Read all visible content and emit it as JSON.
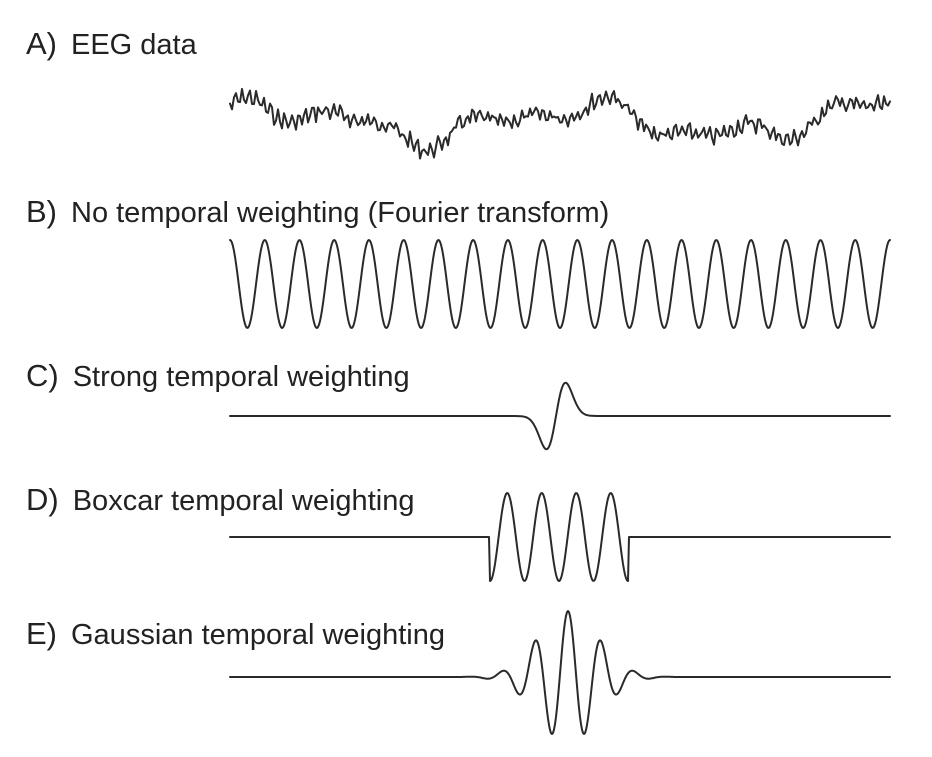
{
  "panels": [
    {
      "id": "A",
      "letter": "A)",
      "title": "EEG data",
      "kind": "noise"
    },
    {
      "id": "B",
      "letter": "B)",
      "title": "No temporal weighting (Fourier transform)",
      "kind": "sine",
      "cycles": 19
    },
    {
      "id": "C",
      "letter": "C)",
      "title": "Strong temporal weighting",
      "kind": "single-cycle"
    },
    {
      "id": "D",
      "letter": "D)",
      "title": "Boxcar temporal weighting",
      "kind": "boxcar",
      "cycles": 4
    },
    {
      "id": "E",
      "letter": "E)",
      "title": "Gaussian temporal weighting",
      "kind": "gaussian"
    }
  ],
  "colors": {
    "line": "#2a2a2a",
    "text": "#222222",
    "background": "#ffffff"
  }
}
